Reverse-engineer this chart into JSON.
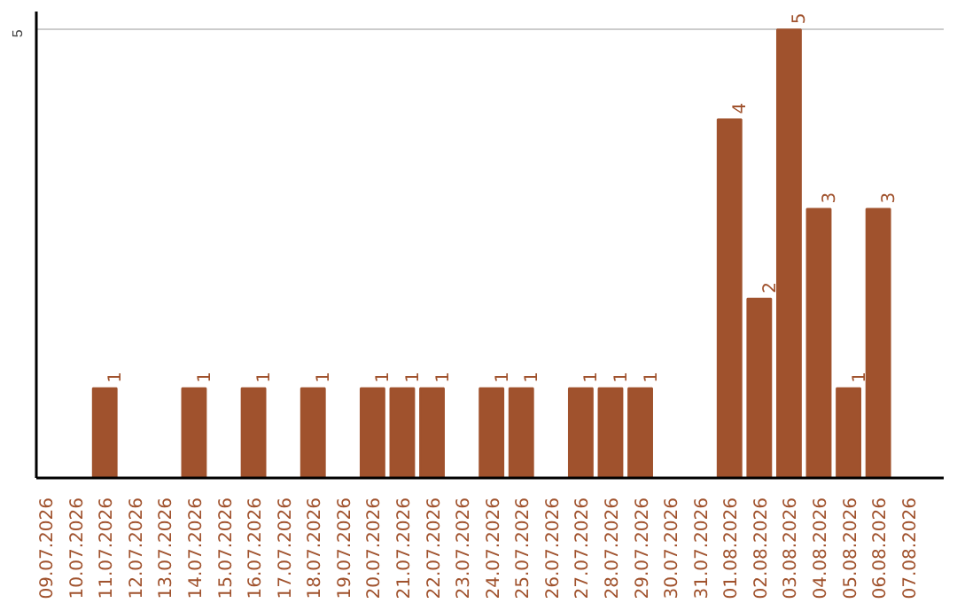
{
  "chart_data": {
    "type": "bar",
    "categories": [
      "09.07.2026",
      "10.07.2026",
      "11.07.2026",
      "12.07.2026",
      "13.07.2026",
      "14.07.2026",
      "15.07.2026",
      "16.07.2026",
      "17.07.2026",
      "18.07.2026",
      "19.07.2026",
      "20.07.2026",
      "21.07.2026",
      "22.07.2026",
      "23.07.2026",
      "24.07.2026",
      "25.07.2026",
      "26.07.2026",
      "27.07.2026",
      "28.07.2026",
      "29.07.2026",
      "30.07.2026",
      "31.07.2026",
      "01.08.2026",
      "02.08.2026",
      "03.08.2026",
      "04.08.2026",
      "05.08.2026",
      "06.08.2026",
      "07.08.2026"
    ],
    "values": [
      null,
      null,
      1,
      null,
      null,
      1,
      null,
      1,
      null,
      1,
      null,
      1,
      1,
      1,
      null,
      1,
      1,
      null,
      1,
      1,
      1,
      null,
      null,
      4,
      2,
      5,
      3,
      1,
      3,
      null
    ],
    "color": "#a0522d",
    "ylim": [
      0,
      5.2
    ],
    "yticks": [
      5
    ],
    "grid": "y",
    "data_labels": true
  }
}
